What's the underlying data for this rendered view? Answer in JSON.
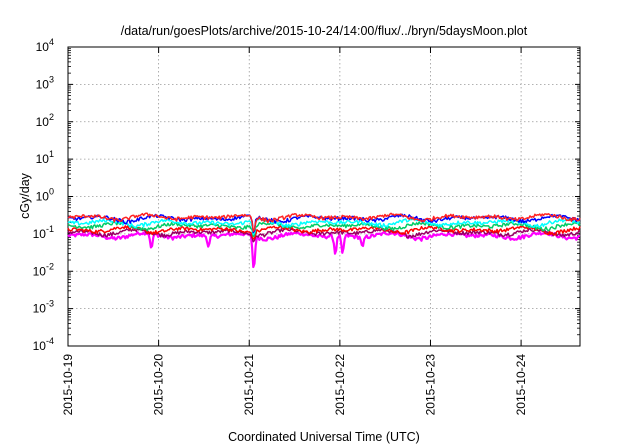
{
  "chart_data": {
    "type": "line",
    "title": "/data/run/goesPlots/archive/2015-10-24/14:00/flux/../bryn/5daysMoon.plot",
    "xlabel": "Coordinated Universal Time (UTC)",
    "ylabel": "cGy/day",
    "y_scale": "log",
    "ylim_exponent": [
      -4,
      4
    ],
    "y_tick_labels": [
      {
        "base": "10",
        "exp": "-4"
      },
      {
        "base": "10",
        "exp": "-3"
      },
      {
        "base": "10",
        "exp": "-2"
      },
      {
        "base": "10",
        "exp": "-1"
      },
      {
        "base": "10",
        "exp": "0"
      },
      {
        "base": "10",
        "exp": "1"
      },
      {
        "base": "10",
        "exp": "2"
      },
      {
        "base": "10",
        "exp": "3"
      },
      {
        "base": "10",
        "exp": "4"
      }
    ],
    "x_range_days": [
      0,
      5.65
    ],
    "x_tick_labels": [
      "2015-10-19",
      "2015-10-20",
      "2015-10-21",
      "2015-10-22",
      "2015-10-23",
      "2015-10-24"
    ],
    "x_tick_days": [
      0,
      1,
      2,
      3,
      4,
      5
    ],
    "grid": true,
    "legend": "none",
    "series": [
      {
        "color": "#ff00ff",
        "base": 0.09,
        "dips": [
          [
            0.92,
            0.04
          ],
          [
            1.55,
            0.045
          ],
          [
            2.05,
            0.011
          ],
          [
            2.95,
            0.028
          ],
          [
            3.03,
            0.03
          ],
          [
            3.25,
            0.045
          ]
        ]
      },
      {
        "color": "#990066",
        "base": 0.11,
        "dips": [
          [
            2.05,
            0.06
          ]
        ]
      },
      {
        "color": "#ff0000",
        "base": 0.13,
        "dips": [
          [
            2.05,
            0.07
          ]
        ]
      },
      {
        "color": "#00cc66",
        "base": 0.165,
        "dips": [
          [
            2.05,
            0.08
          ]
        ]
      },
      {
        "color": "#00ffff",
        "base": 0.2,
        "dips": [
          [
            2.05,
            0.09
          ]
        ]
      },
      {
        "color": "#0000ff",
        "base": 0.26,
        "dips": [
          [
            2.05,
            0.1
          ]
        ]
      },
      {
        "color": "#ff2222",
        "base": 0.28,
        "dips": [
          [
            2.05,
            0.11
          ]
        ]
      }
    ]
  }
}
